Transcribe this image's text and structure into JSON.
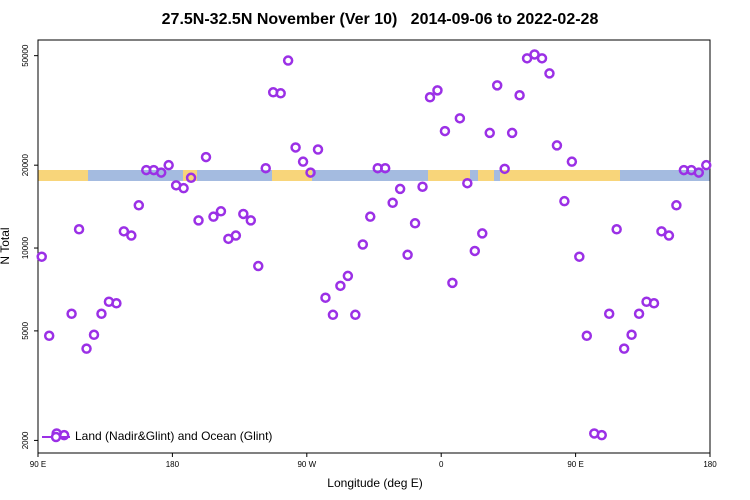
{
  "chart_data": {
    "type": "scatter",
    "title": "27.5N-32.5N November (Ver 10)   2014-09-06 to 2022-02-28",
    "x_label": "Longitude (deg E)",
    "y_label": "N Total",
    "xlim": [
      -270,
      180
    ],
    "xticks": [
      {
        "value": -270,
        "label": "90 E"
      },
      {
        "value": -180,
        "label": "180"
      },
      {
        "value": -90,
        "label": "90 W"
      },
      0,
      {
        "value": 90,
        "label": "90 E"
      },
      180
    ],
    "ylim": [
      1800,
      57000
    ],
    "yscale": "log",
    "yticks": [
      2000,
      5000,
      10000,
      20000,
      50000
    ],
    "legend": "lower left",
    "series": [
      {
        "name": "Land (Nadir&Glint) and Ocean (Glint)",
        "color": "#9b30e6",
        "x": [
          -267.5,
          -262.5,
          -257.5,
          -252.5,
          -247.5,
          -242.5,
          -237.5,
          -232.5,
          -227.5,
          -222.5,
          -217.5,
          -212.5,
          -207.5,
          -202.5,
          -197.5,
          -192.5,
          -187.5,
          -182.5,
          -177.5,
          -172.5,
          -167.5,
          -162.5,
          -157.5,
          -152.5,
          -147.5,
          -142.5,
          -137.5,
          -132.5,
          -127.5,
          -122.5,
          -117.5,
          -112.5,
          -107.5,
          -102.5,
          -97.5,
          -92.5,
          -87.5,
          -82.5,
          -77.5,
          -72.5,
          -67.5,
          -62.5,
          -57.5,
          -52.5,
          -47.5,
          -42.5,
          -37.5,
          -32.5,
          -27.5,
          -22.5,
          -17.5,
          -12.5,
          -7.5,
          -2.5,
          2.5,
          7.5,
          12.5,
          17.5,
          22.5,
          27.5,
          32.5,
          37.5,
          42.5,
          47.5,
          52.5,
          57.5,
          62.5,
          67.5,
          72.5,
          77.5,
          82.5,
          87.5,
          92.5,
          97.5,
          102.5,
          107.5,
          112.5,
          117.5,
          122.5,
          127.5,
          132.5,
          137.5,
          142.5,
          147.5,
          152.5,
          157.5,
          162.5,
          167.5,
          172.5,
          177.5
        ],
        "values": [
          9300,
          4800,
          2120,
          2090,
          5770,
          11700,
          4310,
          4840,
          5770,
          6380,
          6300,
          11500,
          11100,
          14300,
          19200,
          19200,
          18800,
          20000,
          16900,
          16500,
          18000,
          12600,
          21400,
          13000,
          13600,
          10800,
          11100,
          13300,
          12600,
          8600,
          19500,
          36800,
          36500,
          48000,
          23200,
          20600,
          18800,
          22800,
          6600,
          5720,
          7290,
          7920,
          5720,
          10300,
          13000,
          19500,
          19500,
          14600,
          16400,
          9450,
          12300,
          16700,
          35300,
          37400,
          26600,
          7470,
          29600,
          17200,
          9760,
          11300,
          26200,
          39000,
          19400,
          26200,
          35900,
          48900,
          50500,
          48900,
          43100,
          23600,
          14800,
          20600,
          9300,
          4800,
          2120,
          2090,
          5770,
          11700,
          4310,
          4840,
          5770,
          6380,
          6300,
          11500,
          11100,
          14300,
          19200,
          19200,
          18800,
          20000
        ]
      }
    ]
  }
}
